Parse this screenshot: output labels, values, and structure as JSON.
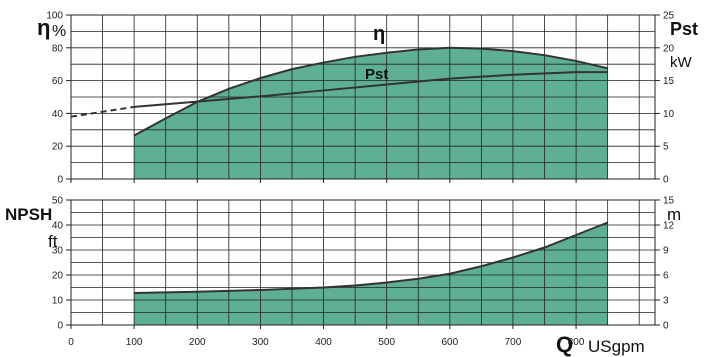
{
  "chart_data": [
    {
      "type": "area",
      "name_hint": "efficiency-and-power",
      "x_unit_symbol": "Q",
      "x_unit": "USgpm",
      "x_ticks": [
        0,
        100,
        200,
        300,
        400,
        500,
        600,
        700,
        800
      ],
      "xlim": [
        0,
        925
      ],
      "left_axis": {
        "symbol": "η",
        "unit": "%",
        "range": [
          0,
          100
        ],
        "ticks": [
          0,
          20,
          40,
          60,
          80,
          100
        ]
      },
      "right_axis": {
        "symbol": "Pst",
        "unit": "kW",
        "range": [
          0,
          25
        ],
        "ticks": [
          0,
          5,
          10,
          15,
          20,
          25
        ]
      },
      "series": [
        {
          "name": "η",
          "axis": "left",
          "filled": true,
          "color": "#5faf96",
          "x": [
            100,
            150,
            200,
            250,
            300,
            350,
            400,
            450,
            500,
            550,
            600,
            650,
            700,
            750,
            800,
            850
          ],
          "y": [
            26.5,
            37,
            47,
            55,
            61.5,
            67,
            71,
            74.5,
            77,
            79,
            80,
            79.5,
            78,
            75.5,
            72,
            67.5
          ]
        },
        {
          "name": "Pst",
          "axis": "right",
          "filled": false,
          "color": "#333333",
          "x": [
            0,
            100,
            200,
            300,
            400,
            500,
            600,
            700,
            800,
            850
          ],
          "y": [
            9.5,
            11,
            11.8,
            12.6,
            13.5,
            14.4,
            15.3,
            15.9,
            16.3,
            16.3
          ],
          "dashed_until_x": 100
        }
      ]
    },
    {
      "type": "area",
      "name_hint": "npsh",
      "x_unit_symbol": "Q",
      "x_unit": "USgpm",
      "x_ticks": [
        0,
        100,
        200,
        300,
        400,
        500,
        600,
        700,
        800
      ],
      "xlim": [
        0,
        925
      ],
      "left_axis": {
        "symbol": "NPSH",
        "unit": "ft",
        "range": [
          0,
          50
        ],
        "ticks": [
          0,
          10,
          20,
          30,
          40,
          50
        ]
      },
      "right_axis": {
        "symbol": "",
        "unit": "m",
        "range": [
          0,
          15
        ],
        "ticks": [
          0,
          3,
          6,
          9,
          12,
          15
        ]
      },
      "series": [
        {
          "name": "NPSH",
          "axis": "left",
          "filled": true,
          "color": "#5faf96",
          "x": [
            100,
            200,
            300,
            400,
            450,
            500,
            550,
            600,
            650,
            700,
            750,
            800,
            850
          ],
          "y": [
            12.8,
            13.3,
            14,
            15,
            15.8,
            17,
            18.5,
            20.5,
            23.5,
            27,
            31,
            36,
            41
          ]
        }
      ]
    }
  ]
}
